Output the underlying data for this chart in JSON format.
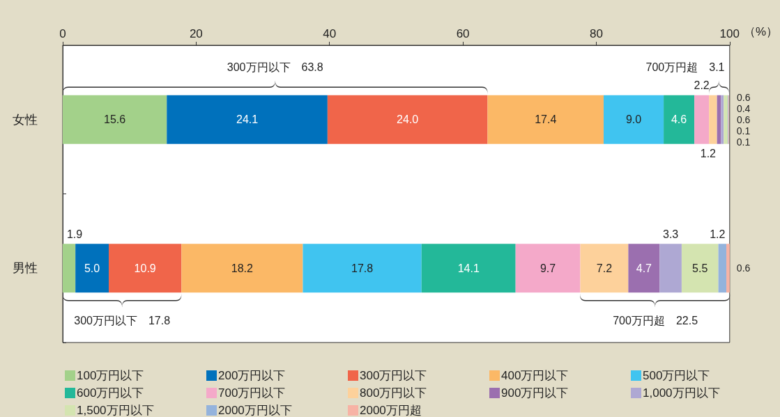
{
  "chart_data": {
    "type": "bar",
    "orientation": "horizontal",
    "stacked": true,
    "xlabel": "（%）",
    "xlim": [
      0,
      100
    ],
    "xticks": [
      0,
      20,
      40,
      60,
      80,
      100
    ],
    "grid": false,
    "legend": "bottom",
    "categories": [
      "女性",
      "男性"
    ],
    "series": [
      {
        "name": "100万円以下",
        "color": "#a3d18a",
        "values": [
          15.6,
          1.9
        ],
        "value_labels": [
          "15.6",
          "1.9"
        ]
      },
      {
        "name": "200万円以下",
        "color": "#0071bc",
        "values": [
          24.1,
          5.0
        ],
        "value_labels": [
          "24.1",
          "5.0"
        ]
      },
      {
        "name": "300万円以下",
        "color": "#f0654a",
        "values": [
          24.0,
          10.9
        ],
        "value_labels": [
          "24.0",
          "10.9"
        ]
      },
      {
        "name": "400万円以下",
        "color": "#fbb866",
        "values": [
          17.4,
          18.2
        ],
        "value_labels": [
          "17.4",
          "18.2"
        ]
      },
      {
        "name": "500万円以下",
        "color": "#40c4f0",
        "values": [
          9.0,
          17.8
        ],
        "value_labels": [
          "9.0",
          "17.8"
        ]
      },
      {
        "name": "600万円以下",
        "color": "#23b899",
        "values": [
          4.6,
          14.1
        ],
        "value_labels": [
          "4.6",
          "14.1"
        ]
      },
      {
        "name": "700万円以下",
        "color": "#f4a9c9",
        "values": [
          2.2,
          9.7
        ],
        "value_labels": [
          "2.2",
          "9.7"
        ]
      },
      {
        "name": "800万円以下",
        "color": "#fdd19b",
        "values": [
          1.2,
          7.2
        ],
        "value_labels": [
          "1.2",
          "7.2"
        ]
      },
      {
        "name": "900万円以下",
        "color": "#9b6faf",
        "values": [
          0.6,
          4.7
        ],
        "value_labels": [
          "0.6",
          "4.7"
        ]
      },
      {
        "name": "1,000万円以下",
        "color": "#aea8d3",
        "values": [
          0.4,
          3.3
        ],
        "value_labels": [
          "0.4",
          "3.3"
        ]
      },
      {
        "name": "1,500万円以下",
        "color": "#d4e4b0",
        "values": [
          0.6,
          5.5
        ],
        "value_labels": [
          "0.6",
          "5.5"
        ]
      },
      {
        "name": "2000万円以下",
        "color": "#94b3dc",
        "values": [
          0.1,
          1.2
        ],
        "value_labels": [
          "0.1",
          "1.2"
        ]
      },
      {
        "name": "2000万円超",
        "color": "#f7b3a5",
        "values": [
          0.1,
          0.6
        ],
        "value_labels": [
          "0.1",
          "0.6"
        ]
      }
    ],
    "annotations": [
      "300万円以下　63.8",
      "700万円超　3.1",
      "300万円以下　17.8",
      "700万円超　22.5"
    ]
  }
}
